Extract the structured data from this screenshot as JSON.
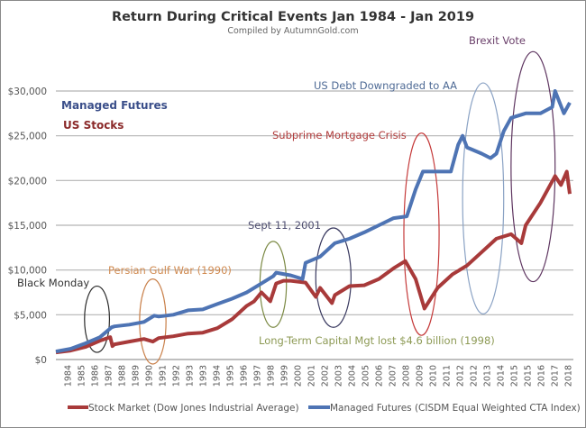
{
  "chart_data": {
    "type": "line",
    "title": "Return During Critical Events Jan 1984 - Jan 2019",
    "subtitle": "Compiled by AutumnGold.com",
    "xlabel": "",
    "ylabel": "",
    "ylim": [
      0,
      30000
    ],
    "xlim": [
      1984,
      2019
    ],
    "grid": "horizontal",
    "legend_placement": "bottom",
    "y_ticks": [
      "$0",
      "$5,000",
      "$10,000",
      "$15,000",
      "$20,000",
      "$25,000",
      "$30,000"
    ],
    "x_tick_labels": [
      "1984",
      "1985",
      "1986",
      "1987",
      "1988",
      "1989",
      "1990",
      "1991",
      "1992",
      "1993",
      "1993",
      "1994",
      "1995",
      "1996",
      "1997",
      "1998",
      "1999",
      "2000",
      "2001",
      "2002",
      "2003",
      "2004",
      "2005",
      "2006",
      "2007",
      "2008",
      "2009",
      "2010",
      "2011",
      "2012",
      "2012",
      "2013",
      "2014",
      "2015",
      "2015",
      "2016",
      "2017",
      "2018"
    ],
    "inline_labels": [
      {
        "text": "Managed Futures",
        "color": "#3b4f8a"
      },
      {
        "text": "US Stocks",
        "color": "#8b2a2a"
      }
    ],
    "series": [
      {
        "name": "Stock Market (Dow Jones Industrial Average)",
        "color": "#a83a3a",
        "x": [
          1984,
          1985,
          1986,
          1987,
          1987.7,
          1987.85,
          1988,
          1989,
          1990,
          1990.6,
          1991,
          1992,
          1993,
          1994,
          1995,
          1996,
          1997,
          1997.5,
          1998,
          1998.6,
          1999,
          1999.5,
          2000,
          2001,
          2001.7,
          2002,
          2002.8,
          2003,
          2004,
          2005,
          2006,
          2007,
          2007.8,
          2008.5,
          2009.1,
          2010,
          2011,
          2012,
          2013,
          2014,
          2015,
          2015.7,
          2016,
          2017,
          2018,
          2018.4,
          2018.8,
          2019
        ],
        "y": [
          800,
          1000,
          1400,
          2100,
          2500,
          1500,
          1700,
          2000,
          2300,
          2000,
          2400,
          2600,
          2900,
          3000,
          3500,
          4500,
          6000,
          6500,
          7500,
          6500,
          8500,
          8800,
          8800,
          8600,
          7000,
          8000,
          6300,
          7200,
          8200,
          8300,
          9000,
          10200,
          11000,
          9000,
          5700,
          8000,
          9500,
          10500,
          12000,
          13500,
          14000,
          13000,
          15000,
          17500,
          20500,
          19500,
          21000,
          18500
        ]
      },
      {
        "name": "Managed Futures (CISDM Equal Weighted CTA Index)",
        "color": "#4e74b4",
        "x": [
          1984,
          1985,
          1986,
          1987,
          1987.8,
          1988,
          1989,
          1990,
          1990.7,
          1991,
          1992,
          1993,
          1994,
          1995,
          1996,
          1997,
          1998,
          1998.8,
          1999,
          2000,
          2000.8,
          2001,
          2002,
          2003,
          2004,
          2005,
          2006,
          2007,
          2007.9,
          2008.5,
          2009,
          2010,
          2010.9,
          2011.4,
          2011.7,
          2012,
          2013,
          2013.6,
          2014,
          2014.5,
          2015,
          2016,
          2017,
          2017.8,
          2018,
          2018.6,
          2019
        ],
        "y": [
          900,
          1200,
          1800,
          2500,
          3600,
          3700,
          3900,
          4200,
          4900,
          4800,
          5000,
          5500,
          5600,
          6200,
          6800,
          7500,
          8500,
          9300,
          9700,
          9400,
          9000,
          10800,
          11500,
          13000,
          13500,
          14200,
          15000,
          15800,
          16000,
          19000,
          21000,
          21000,
          21000,
          24000,
          25000,
          23700,
          23000,
          22500,
          23000,
          25500,
          27000,
          27500,
          27500,
          28200,
          30000,
          27500,
          28700
        ]
      }
    ],
    "annotations": [
      {
        "text": "Black Monday",
        "color": "#333333",
        "ellipse_color": "#2a2a2a",
        "year": 1986.8,
        "halfwidth_years": 0.85,
        "ymin": 800,
        "ymax": 8200
      },
      {
        "text": "Persian Gulf War (1990)",
        "color": "#d08a50",
        "ellipse_color": "#c9804a",
        "year": 1990.6,
        "halfwidth_years": 0.9,
        "ymin": -500,
        "ymax": 9000
      },
      {
        "text": "Long-Term Capital Mgt lost $4.6 billion (1998)",
        "color": "#8d9a55",
        "ellipse_color": "#7c8a45",
        "year": 1998.8,
        "halfwidth_years": 0.9,
        "ymin": 3600,
        "ymax": 13200
      },
      {
        "text": "Sept 11, 2001",
        "color": "#4d4d70",
        "ellipse_color": "#3a3a60",
        "year": 2002.9,
        "halfwidth_years": 1.2,
        "ymin": 3600,
        "ymax": 14700
      },
      {
        "text": "Subprime Mortgage Crisis",
        "color": "#b03a3a",
        "ellipse_color": "#c53a3a",
        "year": 2008.9,
        "halfwidth_years": 1.2,
        "ymin": 2700,
        "ymax": 25300
      },
      {
        "text": "US Debt Downgraded to AA",
        "color": "#4e6a95",
        "ellipse_color": "#8aa2c4",
        "year": 2013.1,
        "halfwidth_years": 1.4,
        "ymin": 5100,
        "ymax": 30900
      },
      {
        "text": "Brexit Vote",
        "color": "#6a3f6a",
        "ellipse_color": "#5e3560",
        "year": 2016.5,
        "halfwidth_years": 1.5,
        "ymin": 8700,
        "ymax": 34400
      }
    ]
  }
}
